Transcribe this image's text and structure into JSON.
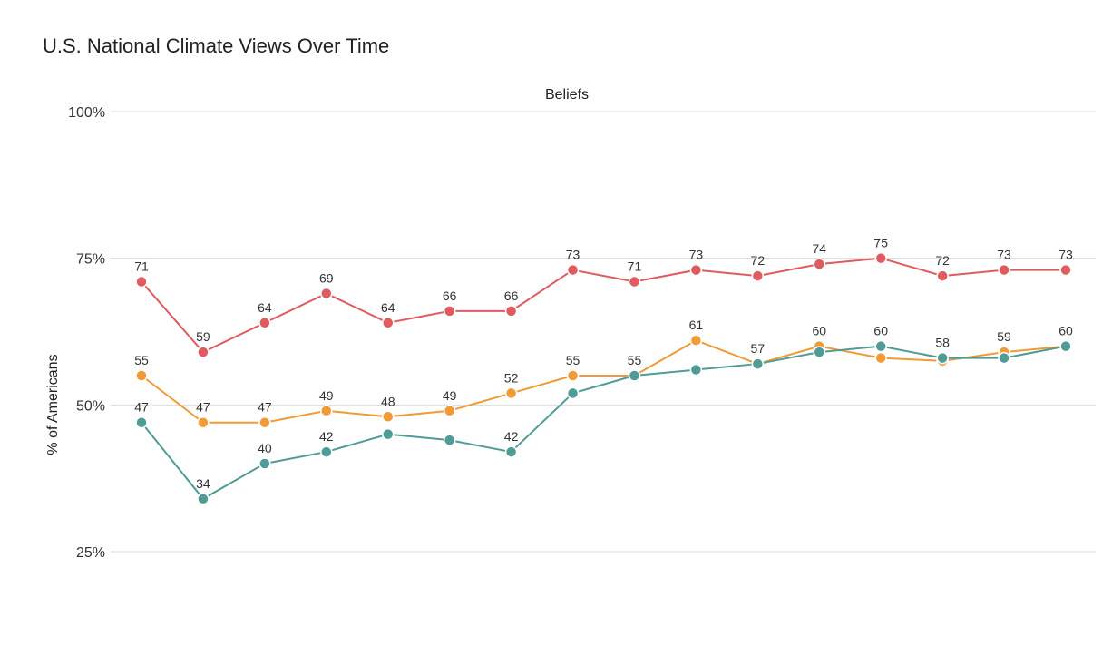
{
  "title": "U.S. National Climate Views Over Time",
  "chart_data": {
    "type": "line",
    "title": "U.S. National Climate Views Over Time",
    "panel_title": "Beliefs",
    "xlabel": "",
    "ylabel": "% of Americans",
    "ylim": [
      25,
      100
    ],
    "yticks": [
      25,
      50,
      75,
      100
    ],
    "ytick_labels": [
      "25%",
      "50%",
      "75%",
      "100%"
    ],
    "grid": true,
    "legend": "none",
    "x": [
      1,
      2,
      3,
      4,
      5,
      6,
      7,
      8,
      9,
      10,
      11,
      12,
      13,
      14,
      15,
      16
    ],
    "series": [
      {
        "color": "#e05b5f",
        "values": [
          71,
          59,
          64,
          69,
          64,
          66,
          66,
          73,
          71,
          73,
          72,
          74,
          75,
          72,
          73,
          73
        ],
        "labels": [
          "71",
          "59",
          "64",
          "69",
          "64",
          "66",
          "66",
          "73",
          "71",
          "73",
          "72",
          "74",
          "75",
          "72",
          "73",
          "73"
        ],
        "show_labels": true
      },
      {
        "color": "#f19a36",
        "values": [
          55,
          47,
          47,
          49,
          48,
          49,
          52,
          55,
          55,
          61,
          57,
          60,
          58,
          57.5,
          59,
          60
        ],
        "labels": [
          "55",
          "47",
          "47",
          "49",
          "48",
          "49",
          "52",
          "55",
          "55",
          "61",
          "57",
          "60",
          "",
          "",
          "59",
          "60"
        ],
        "show_labels": true
      },
      {
        "color": "#4f9c96",
        "values": [
          47,
          34,
          40,
          42,
          45,
          44,
          42,
          52,
          55,
          56,
          57,
          59,
          60,
          58,
          58,
          60
        ],
        "labels": [
          "47",
          "34",
          "40",
          "42",
          "",
          "",
          "42",
          "",
          "",
          "",
          "",
          "",
          "60",
          "58",
          "",
          ""
        ],
        "show_labels": true
      }
    ]
  }
}
